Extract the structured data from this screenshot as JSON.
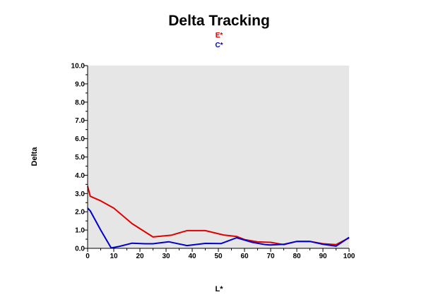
{
  "chart_data": {
    "type": "line",
    "title": "Delta Tracking",
    "xlabel": "L*",
    "ylabel": "Delta",
    "xlim": [
      0,
      100
    ],
    "ylim": [
      0,
      10
    ],
    "grid": false,
    "legend_placement": "top-center",
    "x_ticks": [
      "0",
      "10",
      "20",
      "30",
      "40",
      "50",
      "60",
      "70",
      "80",
      "90",
      "100"
    ],
    "y_ticks": [
      "0.0",
      "1.0",
      "2.0",
      "3.0",
      "4.0",
      "5.0",
      "6.0",
      "7.0",
      "8.0",
      "9.0",
      "10.0"
    ],
    "colors": {
      "plot_background": "#e6e6e6",
      "axis": "#000000"
    },
    "series": [
      {
        "name": "E*",
        "color": "#e00000",
        "points": [
          [
            0,
            3.4
          ],
          [
            1,
            2.85
          ],
          [
            5,
            2.6
          ],
          [
            10,
            2.2
          ],
          [
            17,
            1.35
          ],
          [
            25,
            0.62
          ],
          [
            32,
            0.72
          ],
          [
            38,
            0.97
          ],
          [
            45,
            0.97
          ],
          [
            52,
            0.73
          ],
          [
            57,
            0.65
          ],
          [
            60,
            0.48
          ],
          [
            65,
            0.35
          ],
          [
            70,
            0.33
          ],
          [
            75,
            0.2
          ],
          [
            80,
            0.38
          ],
          [
            85,
            0.38
          ],
          [
            90,
            0.25
          ],
          [
            95,
            0.2
          ],
          [
            100,
            0.57
          ]
        ]
      },
      {
        "name": "C*",
        "color": "#0000cc",
        "points": [
          [
            0,
            2.2
          ],
          [
            1,
            2.05
          ],
          [
            5,
            1.0
          ],
          [
            9,
            0.02
          ],
          [
            12,
            0.1
          ],
          [
            17,
            0.28
          ],
          [
            22,
            0.25
          ],
          [
            25,
            0.25
          ],
          [
            31,
            0.36
          ],
          [
            38,
            0.15
          ],
          [
            45,
            0.27
          ],
          [
            51,
            0.26
          ],
          [
            57,
            0.58
          ],
          [
            63,
            0.33
          ],
          [
            68,
            0.2
          ],
          [
            70,
            0.18
          ],
          [
            75,
            0.22
          ],
          [
            80,
            0.38
          ],
          [
            85,
            0.38
          ],
          [
            90,
            0.22
          ],
          [
            95,
            0.12
          ],
          [
            100,
            0.6
          ]
        ]
      }
    ]
  }
}
